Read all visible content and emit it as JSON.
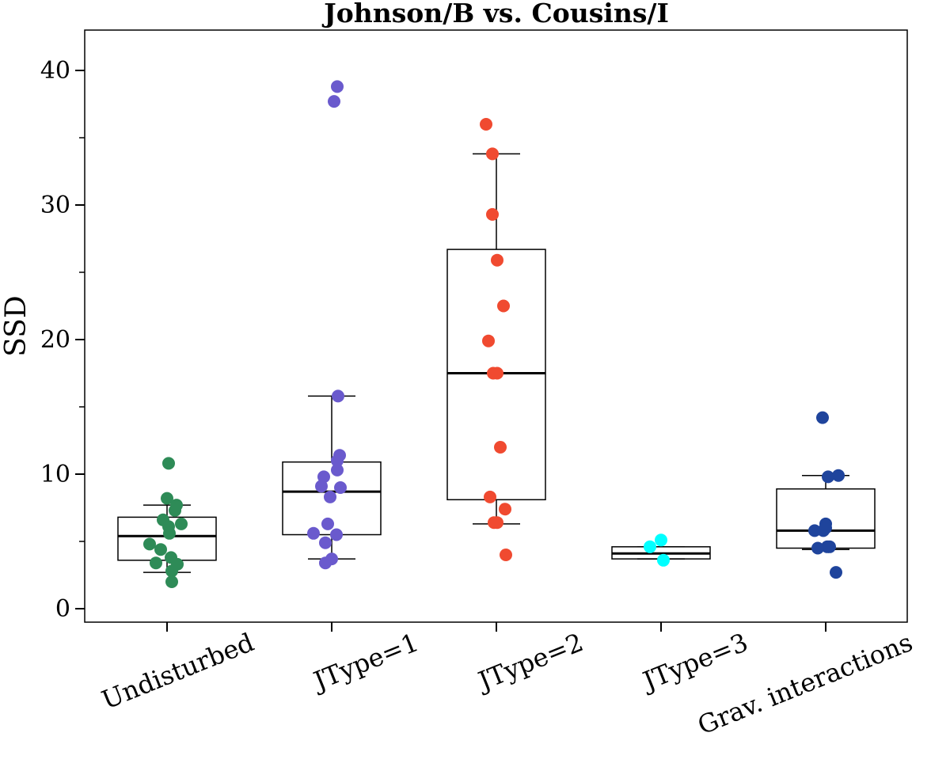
{
  "chart_data": {
    "type": "box",
    "title": "Johnson/B vs. Cousins/I",
    "xlabel": "",
    "ylabel": "SSD",
    "ylim": [
      -1,
      43
    ],
    "yticks": [
      0,
      10,
      20,
      30,
      40
    ],
    "yticks_minor": [
      5,
      15,
      25,
      35
    ],
    "grid": false,
    "categories": [
      "Undisturbed",
      "JType=1",
      "JType=2",
      "JType=3",
      "Grav. interactions"
    ],
    "colors": [
      "#2e8b57",
      "#6a5acd",
      "#f04a30",
      "#00ffff",
      "#1f449c"
    ],
    "boxes": [
      {
        "whisker_low": 2.7,
        "q1": 3.6,
        "median": 5.4,
        "q3": 6.8,
        "whisker_high": 7.7
      },
      {
        "whisker_low": 3.7,
        "q1": 5.5,
        "median": 8.7,
        "q3": 10.9,
        "whisker_high": 15.8
      },
      {
        "whisker_low": 6.3,
        "q1": 8.1,
        "median": 17.5,
        "q3": 26.7,
        "whisker_high": 33.8
      },
      {
        "whisker_low": 3.7,
        "q1": 3.7,
        "median": 4.1,
        "q3": 4.6,
        "whisker_high": 4.6
      },
      {
        "whisker_low": 4.4,
        "q1": 4.5,
        "median": 5.8,
        "q3": 8.9,
        "whisker_high": 9.9
      }
    ],
    "points": [
      [
        {
          "jitter": 0.02,
          "y": 10.8
        },
        {
          "jitter": 0.0,
          "y": 8.2
        },
        {
          "jitter": 0.12,
          "y": 7.7
        },
        {
          "jitter": 0.1,
          "y": 7.3
        },
        {
          "jitter": -0.05,
          "y": 6.6
        },
        {
          "jitter": 0.18,
          "y": 6.3
        },
        {
          "jitter": 0.02,
          "y": 6.1
        },
        {
          "jitter": 0.03,
          "y": 5.6
        },
        {
          "jitter": -0.22,
          "y": 4.8
        },
        {
          "jitter": -0.08,
          "y": 4.4
        },
        {
          "jitter": 0.05,
          "y": 3.8
        },
        {
          "jitter": -0.14,
          "y": 3.4
        },
        {
          "jitter": 0.13,
          "y": 3.3
        },
        {
          "jitter": 0.06,
          "y": 2.8
        },
        {
          "jitter": 0.06,
          "y": 2.0
        }
      ],
      [
        {
          "jitter": 0.07,
          "y": 38.8
        },
        {
          "jitter": 0.03,
          "y": 37.7
        },
        {
          "jitter": 0.08,
          "y": 15.8
        },
        {
          "jitter": 0.1,
          "y": 11.4
        },
        {
          "jitter": 0.07,
          "y": 11.0
        },
        {
          "jitter": 0.07,
          "y": 10.3
        },
        {
          "jitter": -0.1,
          "y": 9.8
        },
        {
          "jitter": -0.13,
          "y": 9.1
        },
        {
          "jitter": 0.11,
          "y": 9.0
        },
        {
          "jitter": -0.02,
          "y": 8.3
        },
        {
          "jitter": -0.05,
          "y": 6.3
        },
        {
          "jitter": -0.23,
          "y": 5.6
        },
        {
          "jitter": 0.06,
          "y": 5.5
        },
        {
          "jitter": -0.08,
          "y": 4.9
        },
        {
          "jitter": 0.0,
          "y": 3.7
        },
        {
          "jitter": -0.08,
          "y": 3.4
        }
      ],
      [
        {
          "jitter": -0.13,
          "y": 36.0
        },
        {
          "jitter": -0.05,
          "y": 33.8
        },
        {
          "jitter": -0.05,
          "y": 29.3
        },
        {
          "jitter": 0.01,
          "y": 25.9
        },
        {
          "jitter": 0.09,
          "y": 22.5
        },
        {
          "jitter": -0.1,
          "y": 19.9
        },
        {
          "jitter": -0.04,
          "y": 17.5
        },
        {
          "jitter": 0.01,
          "y": 17.5
        },
        {
          "jitter": 0.05,
          "y": 12.0
        },
        {
          "jitter": -0.08,
          "y": 8.3
        },
        {
          "jitter": 0.11,
          "y": 7.4
        },
        {
          "jitter": -0.03,
          "y": 6.4
        },
        {
          "jitter": 0.01,
          "y": 6.4
        },
        {
          "jitter": 0.12,
          "y": 4.0
        }
      ],
      [
        {
          "jitter": -0.14,
          "y": 4.6
        },
        {
          "jitter": 0.0,
          "y": 5.1
        },
        {
          "jitter": 0.03,
          "y": 3.6
        }
      ],
      [
        {
          "jitter": -0.04,
          "y": 14.2
        },
        {
          "jitter": 0.16,
          "y": 9.9
        },
        {
          "jitter": 0.03,
          "y": 9.8
        },
        {
          "jitter": 0.0,
          "y": 6.3
        },
        {
          "jitter": -0.14,
          "y": 5.8
        },
        {
          "jitter": -0.03,
          "y": 5.8
        },
        {
          "jitter": 0.0,
          "y": 6.0
        },
        {
          "jitter": 0.02,
          "y": 4.6
        },
        {
          "jitter": -0.1,
          "y": 4.5
        },
        {
          "jitter": 0.05,
          "y": 4.6
        },
        {
          "jitter": 0.13,
          "y": 2.7
        }
      ]
    ]
  }
}
